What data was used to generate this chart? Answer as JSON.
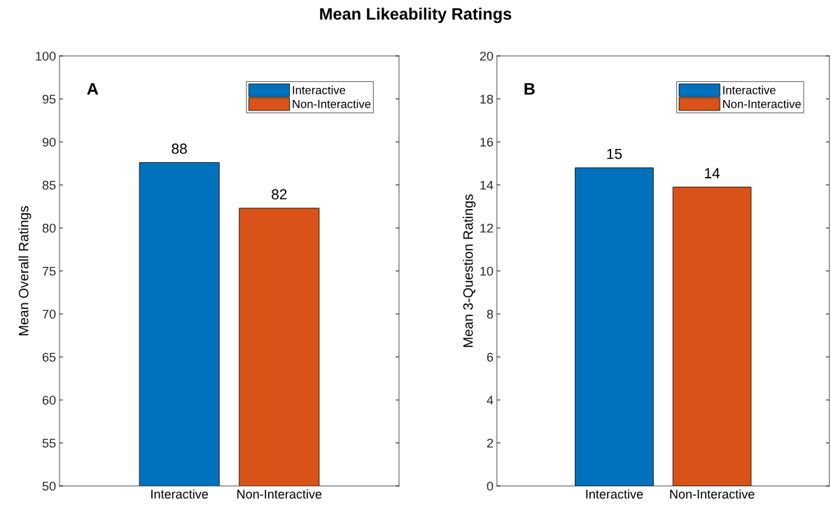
{
  "chart_data": [
    {
      "type": "bar",
      "title": "Mean Likeability Ratings",
      "ylabel": "Mean Overall Ratings",
      "categories": [
        "Interactive",
        "Non-Interactive"
      ],
      "series": [
        {
          "name": "Interactive",
          "color": "#0072bd",
          "values": [
            87.6,
            null
          ],
          "value_labels": [
            "88",
            null
          ]
        },
        {
          "name": "Non-Interactive",
          "color": "#d95319",
          "values": [
            null,
            82.3
          ],
          "value_labels": [
            null,
            "82"
          ]
        }
      ],
      "ylim": [
        50,
        100
      ],
      "yticks": [
        50,
        55,
        60,
        65,
        70,
        75,
        80,
        85,
        90,
        95,
        100
      ],
      "legend": "top right",
      "grid": false,
      "annotations": [
        "A"
      ]
    },
    {
      "type": "bar",
      "ylabel": "Mean 3-Question Ratings",
      "categories": [
        "Interactive",
        "Non-Interactive"
      ],
      "series": [
        {
          "name": "Interactive",
          "color": "#0072bd",
          "values": [
            14.8,
            null
          ],
          "value_labels": [
            "15",
            null
          ]
        },
        {
          "name": "Non-Interactive",
          "color": "#d95319",
          "values": [
            null,
            13.9
          ],
          "value_labels": [
            null,
            "14"
          ]
        }
      ],
      "ylim": [
        0,
        20
      ],
      "yticks": [
        0,
        2,
        4,
        6,
        8,
        10,
        12,
        14,
        16,
        18,
        20
      ],
      "legend": "top right",
      "grid": false,
      "annotations": [
        "B"
      ]
    }
  ]
}
